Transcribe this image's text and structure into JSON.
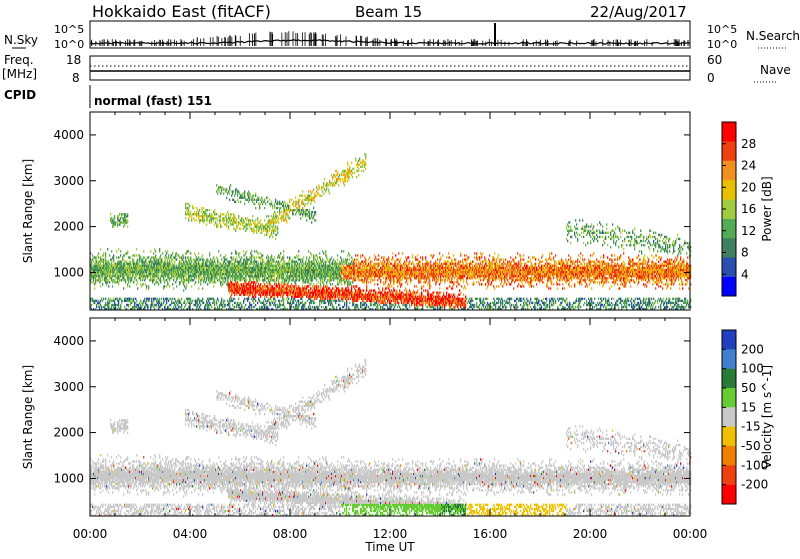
{
  "header": {
    "station": "Hokkaido East (fitACF)",
    "beam": "Beam 15",
    "date": "22/Aug/2017"
  },
  "params": {
    "nsky_label": "N.Sky",
    "nsearch_label": "N.Search",
    "nsky_ticks": [
      "10^5",
      "10^0"
    ],
    "nsearch_ticks": [
      "10^5",
      "10^0"
    ],
    "freq_label": "Freq.",
    "freq_unit": "[MHz]",
    "freq_ticks": [
      "18",
      "8"
    ],
    "nave_label": "Nave",
    "nave_ticks": [
      "60",
      "0"
    ],
    "cpid_label": "CPID",
    "cpid_value": "normal (fast) 151"
  },
  "time_axis": {
    "label": "Time UT",
    "ticks": [
      "00:00",
      "04:00",
      "08:00",
      "12:00",
      "16:00",
      "20:00",
      "00:00"
    ]
  },
  "chart_data": [
    {
      "type": "heatmap",
      "quantity": "Power",
      "ylabel": "Slant Range [km]",
      "xlabel": "Time UT",
      "xlim": [
        0,
        24
      ],
      "ylim": [
        180,
        4500
      ],
      "yticks": [
        "1000",
        "2000",
        "3000",
        "4000"
      ],
      "colorbar": {
        "label": "Power [dB]",
        "ticks": [
          "4",
          "8",
          "12",
          "16",
          "20",
          "24",
          "28"
        ],
        "range": [
          0,
          32
        ],
        "colors": [
          "#0000ff",
          "#2a4fb0",
          "#3f8060",
          "#55aa55",
          "#a0cc40",
          "#e8c000",
          "#f09020",
          "#f04010",
          "#ff0000"
        ]
      },
      "echo_bands": [
        {
          "t_start": 0.0,
          "t_end": 10.5,
          "r_low": 600,
          "r_high": 1400,
          "level": "medium"
        },
        {
          "t_start": 10.0,
          "t_end": 24.0,
          "r_low": 600,
          "r_high": 1400,
          "level": "strong"
        },
        {
          "t_start": 6.0,
          "t_end": 15.0,
          "r_low": 180,
          "r_high": 700,
          "level": "strong"
        },
        {
          "t_start": 3.8,
          "t_end": 11.5,
          "r_low": 1500,
          "r_high": 3700,
          "level": "weak"
        },
        {
          "t_start": 0.8,
          "t_end": 1.5,
          "r_low": 1900,
          "r_high": 2300,
          "level": "weak"
        }
      ]
    },
    {
      "type": "heatmap",
      "quantity": "Velocity",
      "ylabel": "Slant Range [km]",
      "xlabel": "Time UT",
      "xlim": [
        0,
        24
      ],
      "ylim": [
        180,
        4500
      ],
      "yticks": [
        "1000",
        "2000",
        "3000",
        "4000"
      ],
      "colorbar": {
        "label": "Velocity [m s^-1]",
        "ticks": [
          "200",
          "100",
          "50",
          "15",
          "-15",
          "-50",
          "-100",
          "-200"
        ],
        "colors": [
          "#2040c0",
          "#4080d0",
          "#2a7a3a",
          "#66cc33",
          "#c8c8c8",
          "#f0c000",
          "#f08000",
          "#f04010",
          "#ff0000"
        ]
      }
    }
  ]
}
